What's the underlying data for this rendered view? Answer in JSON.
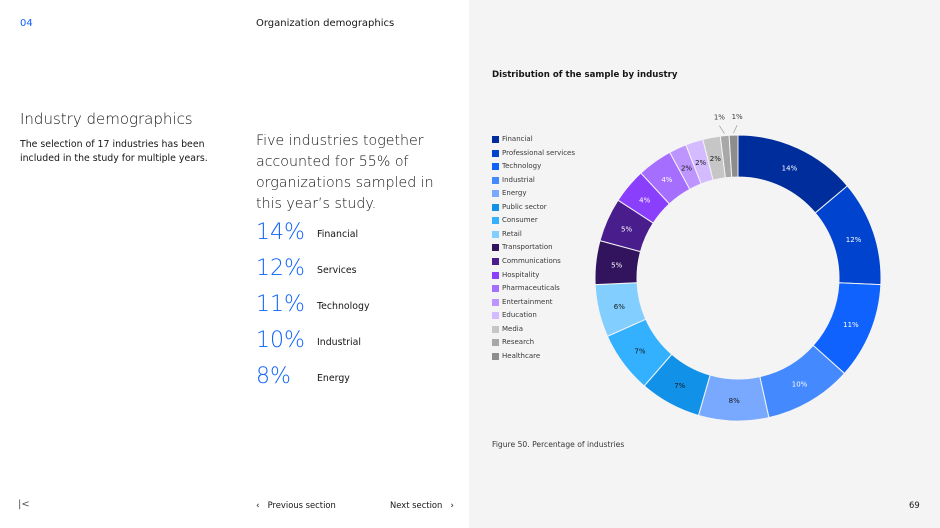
{
  "header": {
    "page_number": "04",
    "section_title": "Organization demographics"
  },
  "left": {
    "heading": "Industry demographics",
    "intro": "The selection of 17 industries has been included in the study for multiple years."
  },
  "middle": {
    "headline": "Five industries together accounted for 55% of organizations sampled in this year’s study.",
    "stats": [
      {
        "pct": "14%",
        "label": "Financial"
      },
      {
        "pct": "12%",
        "label": "Services"
      },
      {
        "pct": "11%",
        "label": "Technology"
      },
      {
        "pct": "10%",
        "label": "Industrial"
      },
      {
        "pct": "8%",
        "label": "Energy"
      }
    ]
  },
  "chart_data": {
    "type": "pie",
    "title": "Distribution of the sample by industry",
    "caption": "Figure 50. Percentage of industries",
    "legend_position": "left",
    "donut": true,
    "categories": [
      "Financial",
      "Professional services",
      "Technology",
      "Industrial",
      "Energy",
      "Public sector",
      "Consumer",
      "Retail",
      "Transportation",
      "Communications",
      "Hospitality",
      "Pharmaceuticals",
      "Entertainment",
      "Education",
      "Media",
      "Research",
      "Healthcare"
    ],
    "values": [
      14,
      12,
      11,
      10,
      8,
      7,
      7,
      6,
      5,
      5,
      4,
      4,
      2,
      2,
      2,
      1,
      1
    ],
    "data_labels": [
      "14%",
      "12%",
      "11%",
      "10%",
      "8%",
      "7%",
      "7%",
      "6%",
      "5%",
      "5%",
      "4%",
      "4%",
      "2%",
      "2%",
      "2%",
      "1%",
      "1%"
    ],
    "colors": [
      "#002d9c",
      "#0043ce",
      "#0f62fe",
      "#4589ff",
      "#78a9ff",
      "#1192e8",
      "#33b1ff",
      "#82cfff",
      "#31135e",
      "#491d8b",
      "#8a3ffc",
      "#a56eff",
      "#be95ff",
      "#d4bbff",
      "#c6c6c6",
      "#a8a8a8",
      "#8d8d8d"
    ],
    "label_colors": [
      "#ffffff",
      "#ffffff",
      "#ffffff",
      "#ffffff",
      "#161616",
      "#161616",
      "#161616",
      "#161616",
      "#ffffff",
      "#ffffff",
      "#ffffff",
      "#ffffff",
      "#161616",
      "#161616",
      "#161616",
      "#161616",
      "#161616"
    ]
  },
  "footer": {
    "first_icon": "first-page-icon",
    "prev_label": "Previous section",
    "next_label": "Next section",
    "page": "69"
  }
}
